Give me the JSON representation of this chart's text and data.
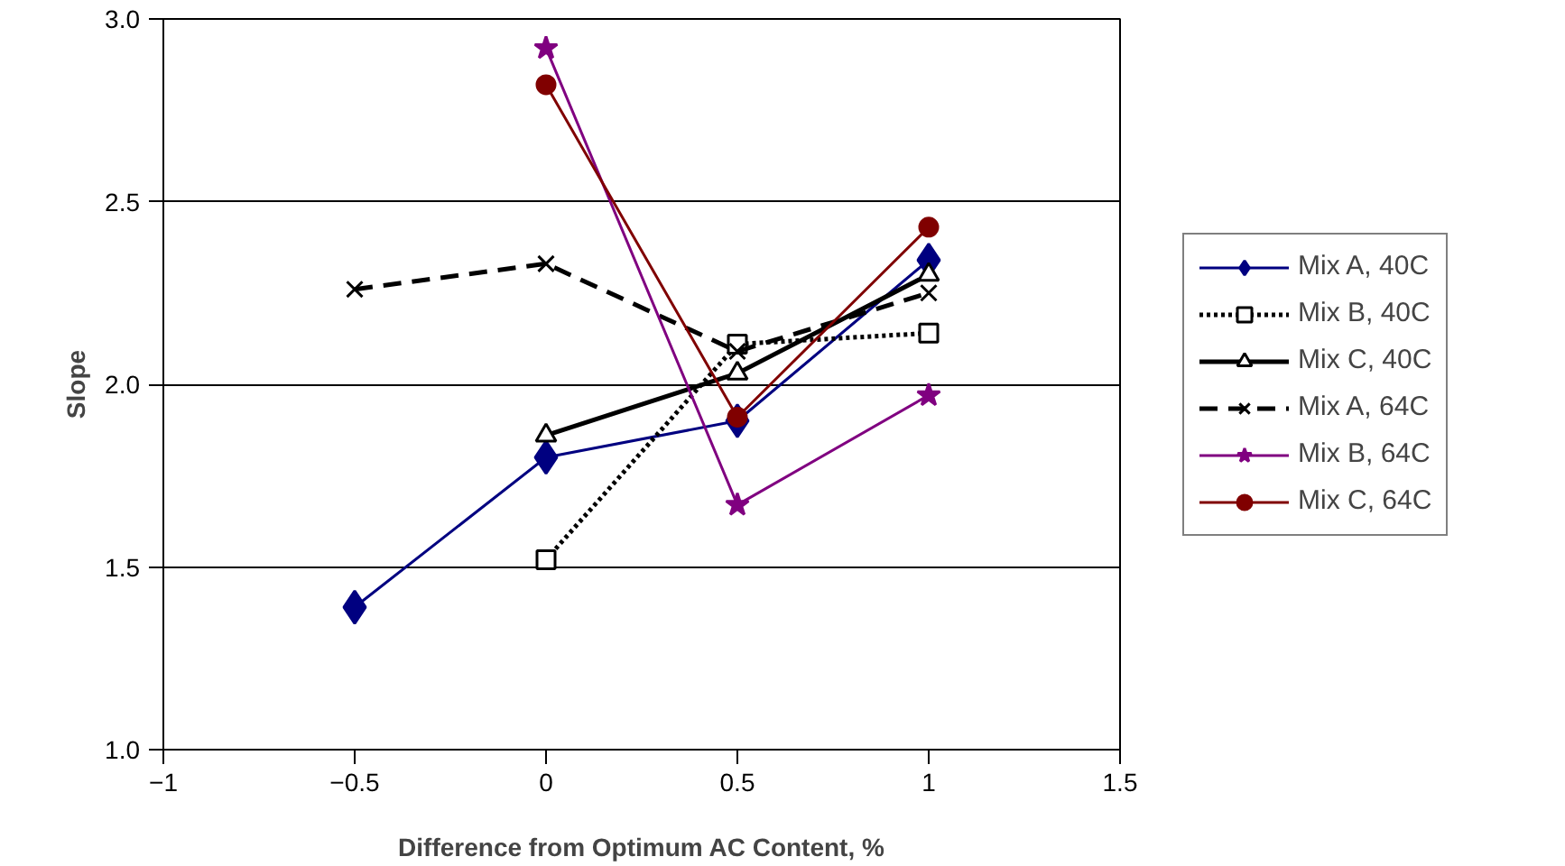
{
  "chart_data": {
    "type": "line",
    "xlabel": "Difference from Optimum AC Content, %",
    "ylabel": "Slope",
    "xlim": [
      -1,
      1.5
    ],
    "xticks": [
      -1,
      -0.5,
      0,
      0.5,
      1,
      1.5
    ],
    "ylim": [
      1.0,
      3.0
    ],
    "yticks": [
      {
        "value": 1.0,
        "label": "1.0"
      },
      {
        "value": 1.5,
        "label": "1.5"
      },
      {
        "value": 2.0,
        "label": "2.0"
      },
      {
        "value": 2.5,
        "label": "2.5"
      },
      {
        "value": 3.0,
        "label": "3.0"
      }
    ],
    "grid": "y",
    "legend": "right",
    "series": [
      {
        "name": "Mix A, 40C",
        "color": "#000080",
        "marker": "diamond",
        "line_style": "solid",
        "x": [
          -0.5,
          0,
          0.5,
          1
        ],
        "values": [
          1.39,
          1.8,
          1.9,
          2.34
        ]
      },
      {
        "name": "Mix B, 40C",
        "color": "#000000",
        "marker": "square",
        "line_style": "dotted",
        "x": [
          0,
          0.5,
          1
        ],
        "values": [
          1.52,
          2.11,
          2.14
        ]
      },
      {
        "name": "Mix C, 40C",
        "color": "#000000",
        "marker": "triangle",
        "line_style": "solid",
        "x": [
          0,
          0.5,
          1
        ],
        "values": [
          1.86,
          2.03,
          2.3
        ]
      },
      {
        "name": "Mix A, 64C",
        "color": "#000000",
        "marker": "cross",
        "line_style": "dashed",
        "x": [
          -0.5,
          0,
          0.5,
          1
        ],
        "values": [
          2.26,
          2.33,
          2.09,
          2.25
        ]
      },
      {
        "name": "Mix B, 64C",
        "color": "#800080",
        "marker": "star",
        "line_style": "solid",
        "x": [
          0,
          0.5,
          1
        ],
        "values": [
          2.92,
          1.67,
          1.97
        ]
      },
      {
        "name": "Mix C, 64C",
        "color": "#800000",
        "marker": "circle",
        "line_style": "solid",
        "x": [
          0,
          0.5,
          1
        ],
        "values": [
          2.82,
          1.91,
          2.43
        ]
      }
    ]
  }
}
